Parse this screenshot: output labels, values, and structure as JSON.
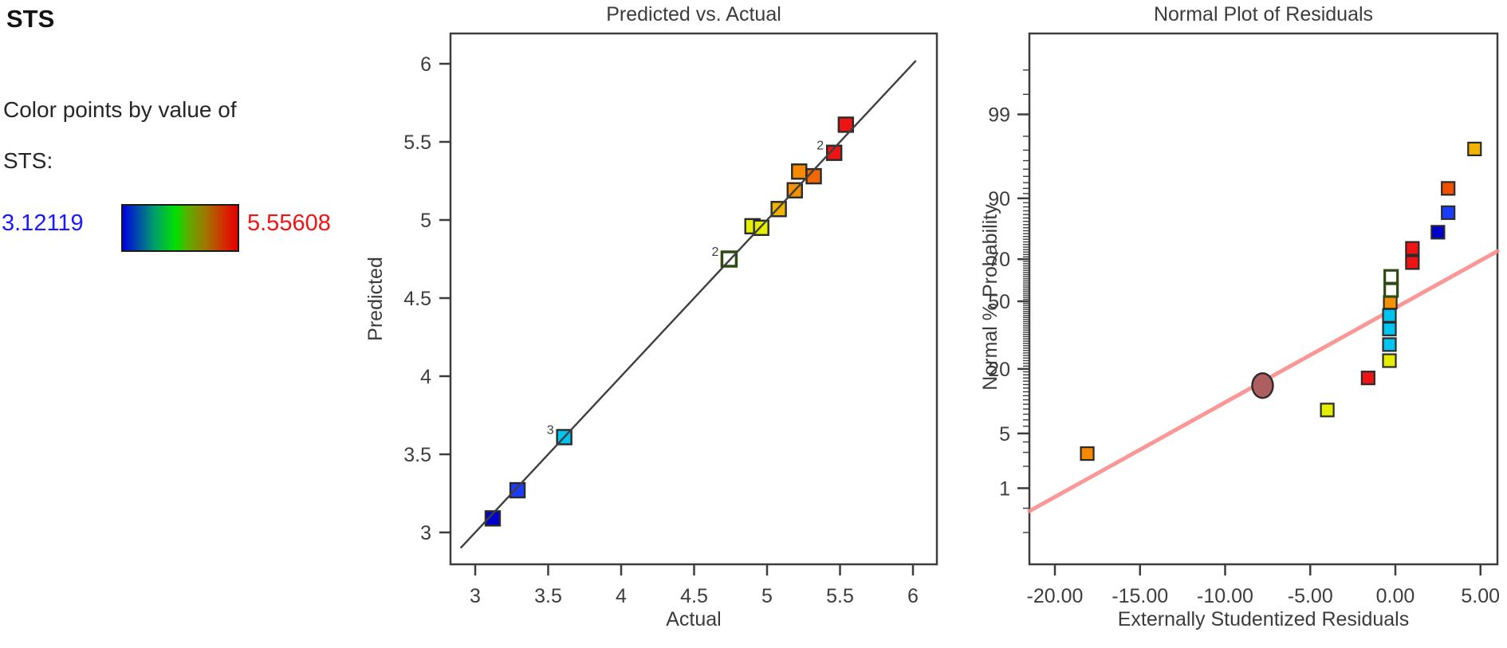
{
  "legend": {
    "title": "STS",
    "caption_line1": "Color points by value of",
    "caption_line2": "STS:",
    "min_value": "3.12119",
    "max_value": "5.55608",
    "min_color": "#1a1aff",
    "max_color": "#f01414",
    "gradient_stops": [
      "#0000e0 0%",
      "#00a06a 28%",
      "#00e000 46%",
      "#57b000 56%",
      "#9f7700 72%",
      "#d92400 90%",
      "#e00000 100%"
    ]
  },
  "chart_data": [
    {
      "type": "scatter",
      "title": "Predicted vs. Actual",
      "xlabel": "Actual",
      "ylabel": "Predicted",
      "xlim": [
        2.83,
        6.17
      ],
      "ylim": [
        2.79,
        6.19
      ],
      "grid": false,
      "xticks": [
        {
          "v": 3,
          "label": "3"
        },
        {
          "v": 3.5,
          "label": "3.5"
        },
        {
          "v": 4,
          "label": "4"
        },
        {
          "v": 4.5,
          "label": "4.5"
        },
        {
          "v": 5,
          "label": "5"
        },
        {
          "v": 5.5,
          "label": "5.5"
        },
        {
          "v": 6,
          "label": "6"
        }
      ],
      "yticks": [
        {
          "v": 3,
          "label": "3"
        },
        {
          "v": 3.5,
          "label": "3.5"
        },
        {
          "v": 4,
          "label": "4"
        },
        {
          "v": 4.5,
          "label": "4.5"
        },
        {
          "v": 5,
          "label": "5"
        },
        {
          "v": 5.5,
          "label": "5.5"
        },
        {
          "v": 6,
          "label": "6"
        }
      ],
      "reference_line": {
        "from": [
          2.9,
          2.9
        ],
        "to": [
          6.02,
          6.02
        ],
        "color": "#3f3f3f"
      },
      "points": [
        {
          "actual": 3.12,
          "predicted": 3.09,
          "color": "#0000cc"
        },
        {
          "actual": 3.29,
          "predicted": 3.27,
          "color": "#1a3cff"
        },
        {
          "actual": 3.61,
          "predicted": 3.61,
          "color": "#00c4f0",
          "count": "3"
        },
        {
          "actual": 4.74,
          "predicted": 4.75,
          "color": "#2f4a12",
          "open": true,
          "count": "2"
        },
        {
          "actual": 4.9,
          "predicted": 4.96,
          "color": "#e4ee00"
        },
        {
          "actual": 4.96,
          "predicted": 4.95,
          "color": "#e4ee00"
        },
        {
          "actual": 5.08,
          "predicted": 5.07,
          "color": "#f0b400"
        },
        {
          "actual": 5.19,
          "predicted": 5.19,
          "color": "#f59000"
        },
        {
          "actual": 5.22,
          "predicted": 5.31,
          "color": "#f58a00"
        },
        {
          "actual": 5.32,
          "predicted": 5.28,
          "color": "#f06800"
        },
        {
          "actual": 5.46,
          "predicted": 5.43,
          "color": "#ee1414",
          "count": "2"
        },
        {
          "actual": 5.54,
          "predicted": 5.61,
          "color": "#ee1414"
        }
      ]
    },
    {
      "type": "scatter",
      "title": "Normal Plot of Residuals",
      "xlabel": "Externally Studentized Residuals",
      "ylabel": "Normal % Probability",
      "y_scale": "normal-probability",
      "xlim": [
        -21.5,
        6.0
      ],
      "xticks": [
        {
          "v": -20,
          "label": "-20.00"
        },
        {
          "v": -15,
          "label": "-15.00"
        },
        {
          "v": -10,
          "label": "-10.00"
        },
        {
          "v": -5,
          "label": "-5.00"
        },
        {
          "v": 0,
          "label": "0.00"
        },
        {
          "v": 5,
          "label": "5.00"
        }
      ],
      "yticks": [
        {
          "p": 99,
          "label": "99"
        },
        {
          "p": 90,
          "label": "90"
        },
        {
          "p": 70,
          "label": "70"
        },
        {
          "p": 50,
          "label": "50"
        },
        {
          "p": 20,
          "label": "20"
        },
        {
          "p": 5,
          "label": "5"
        },
        {
          "p": 1,
          "label": "1"
        }
      ],
      "trend_line": {
        "x1": -21.5,
        "p1": 0.45,
        "x2": 6.0,
        "p2": 73.4,
        "color": "#fa8c8c"
      },
      "points": [
        {
          "x": -18.1,
          "p": 2.9,
          "color": "#f58a00"
        },
        {
          "x": -7.8,
          "p": 14.7,
          "color": "#ad5f5f",
          "marker": "circle"
        },
        {
          "x": -4.0,
          "p": 8.8,
          "color": "#e4ee00"
        },
        {
          "x": -1.6,
          "p": 17.0,
          "color": "#ee1414"
        },
        {
          "x": -0.35,
          "p": 23.0,
          "color": "#e4ee00"
        },
        {
          "x": -0.35,
          "p": 29.5,
          "color": "#00c4f0"
        },
        {
          "x": -0.35,
          "p": 36.5,
          "color": "#00c4f0"
        },
        {
          "x": -0.35,
          "p": 43.0,
          "color": "#00c4f0"
        },
        {
          "x": -0.3,
          "p": 49.5,
          "color": "#f59000"
        },
        {
          "x": -0.25,
          "p": 55.5,
          "color": "#2f4a12",
          "open": true
        },
        {
          "x": -0.25,
          "p": 62.0,
          "color": "#2f4a12",
          "open": true
        },
        {
          "x": 1.0,
          "p": 68.5,
          "color": "#ee1414"
        },
        {
          "x": 1.0,
          "p": 74.5,
          "color": "#ee1414"
        },
        {
          "x": 2.5,
          "p": 80.5,
          "color": "#0000cc"
        },
        {
          "x": 3.1,
          "p": 86.5,
          "color": "#1a3cff"
        },
        {
          "x": 3.1,
          "p": 92.0,
          "color": "#f05000"
        },
        {
          "x": 4.65,
          "p": 97.1,
          "color": "#f0b400"
        }
      ]
    }
  ]
}
